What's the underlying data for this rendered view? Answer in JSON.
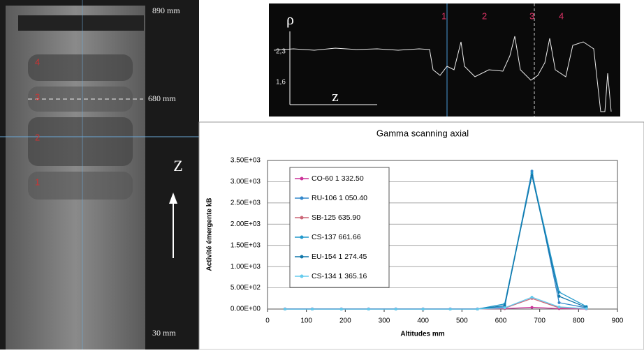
{
  "radiograph": {
    "top_label": "890 mm",
    "mid_label": "680 mm",
    "axis_label": "Z",
    "bottom_label": "30 mm",
    "markers": [
      "4",
      "3",
      "2",
      "1"
    ]
  },
  "density_profile": {
    "y_label": "ρ",
    "x_label": "z",
    "level_high": "2,3",
    "level_low": "1,6",
    "markers": [
      "1",
      "2",
      "3",
      "4"
    ]
  },
  "chart_data": {
    "type": "line",
    "title": "Gamma scanning axial",
    "x_label": "Altitudes mm",
    "y_label": "Activité émergente kB",
    "x": [
      45,
      115,
      190,
      260,
      330,
      400,
      470,
      540,
      610,
      680,
      750,
      820
    ],
    "series": [
      {
        "name": "CO-60   1 332.50",
        "color": "#cc3399",
        "values": [
          5,
          5,
          5,
          5,
          5,
          5,
          5,
          5,
          10,
          40,
          10,
          5
        ]
      },
      {
        "name": "RU-106   1 050.40",
        "color": "#3388cc",
        "values": [
          0,
          0,
          0,
          0,
          0,
          0,
          0,
          0,
          50,
          3250,
          150,
          30
        ]
      },
      {
        "name": "SB-125   635.90",
        "color": "#cc6677",
        "values": [
          0,
          0,
          0,
          0,
          0,
          0,
          0,
          0,
          20,
          250,
          30,
          10
        ]
      },
      {
        "name": "CS-137   661.66",
        "color": "#2299cc",
        "values": [
          0,
          0,
          0,
          0,
          0,
          0,
          0,
          0,
          120,
          3200,
          400,
          60
        ]
      },
      {
        "name": "EU-154   1 274.45",
        "color": "#1177aa",
        "values": [
          0,
          0,
          0,
          0,
          0,
          0,
          0,
          0,
          80,
          3150,
          300,
          40
        ]
      },
      {
        "name": "CS-134   1 365.16",
        "color": "#66ccee",
        "values": [
          0,
          0,
          0,
          0,
          0,
          0,
          0,
          0,
          30,
          280,
          50,
          10
        ]
      }
    ],
    "xlim": [
      0,
      900
    ],
    "xticks": [
      0,
      100,
      200,
      300,
      400,
      500,
      600,
      700,
      800,
      900
    ],
    "ylim": [
      0,
      3500
    ],
    "yticks": [
      {
        "value": 0,
        "label": "0.00E+00"
      },
      {
        "value": 500,
        "label": "5.00E+02"
      },
      {
        "value": 1000,
        "label": "1.00E+03"
      },
      {
        "value": 1500,
        "label": "1.50E+03"
      },
      {
        "value": 2000,
        "label": "2.00E+03"
      },
      {
        "value": 2500,
        "label": "2.50E+03"
      },
      {
        "value": 3000,
        "label": "3.00E+03"
      },
      {
        "value": 3500,
        "label": "3.50E+03"
      }
    ],
    "grid": true
  }
}
